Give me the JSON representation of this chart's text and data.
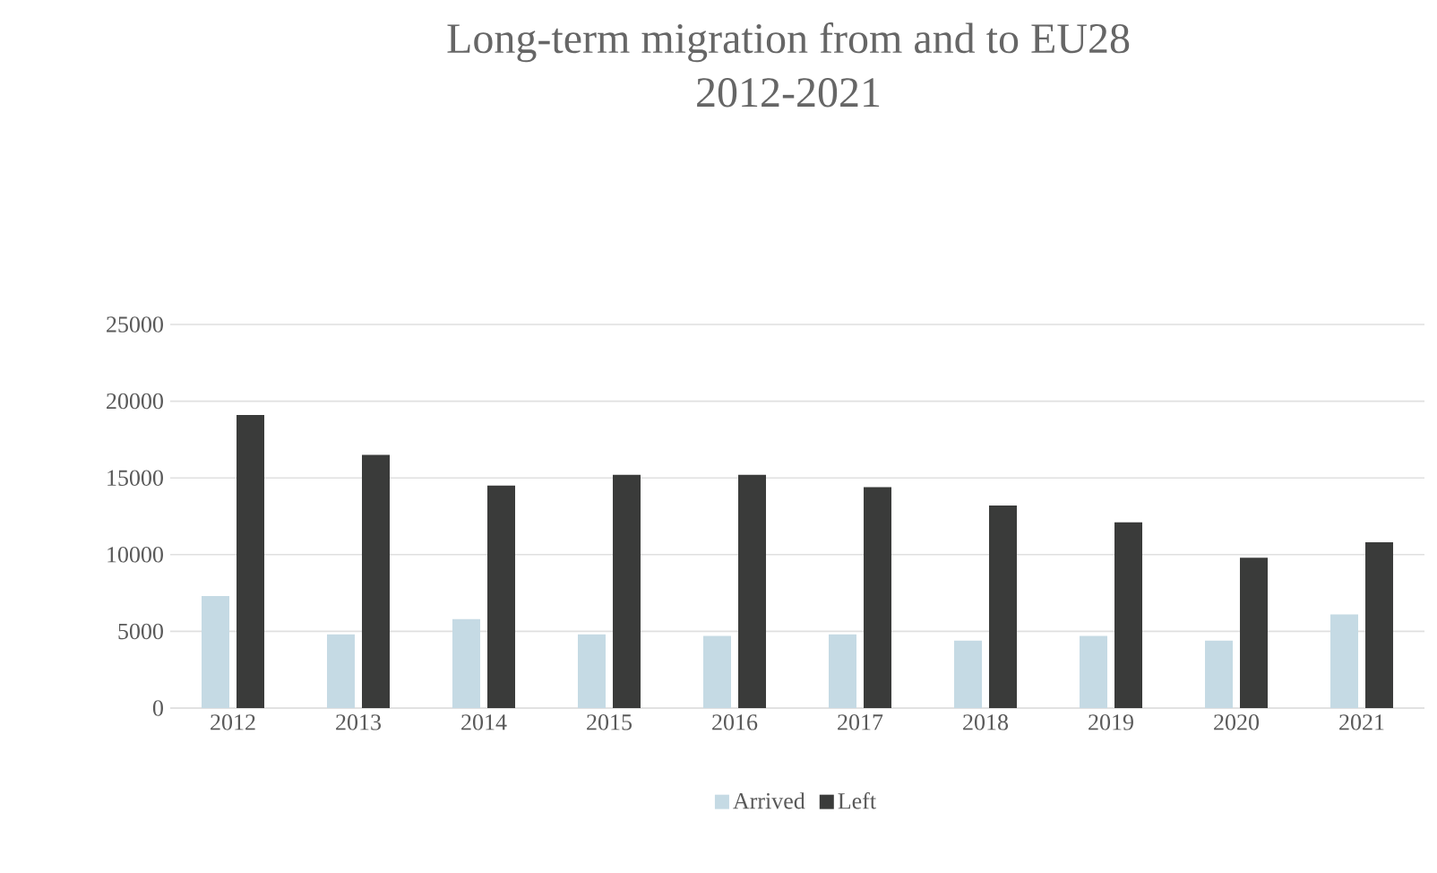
{
  "chart_data": {
    "type": "bar",
    "title": "Long-term migration from and to EU28",
    "subtitle": "2012-2021",
    "categories": [
      "2012",
      "2013",
      "2014",
      "2015",
      "2016",
      "2017",
      "2018",
      "2019",
      "2020",
      "2021"
    ],
    "series": [
      {
        "name": "Arrived",
        "color": "#c5dae4",
        "values": [
          7300,
          4800,
          5800,
          4800,
          4700,
          4800,
          4400,
          4700,
          4400,
          6100
        ]
      },
      {
        "name": "Left",
        "color": "#3a3b3a",
        "values": [
          19100,
          16500,
          14500,
          15200,
          15200,
          14400,
          13200,
          12100,
          9800,
          10800
        ]
      }
    ],
    "ylim": [
      0,
      25000
    ],
    "yticks": [
      0,
      5000,
      10000,
      15000,
      20000,
      25000
    ],
    "grid": "y",
    "legend": "bottom"
  }
}
